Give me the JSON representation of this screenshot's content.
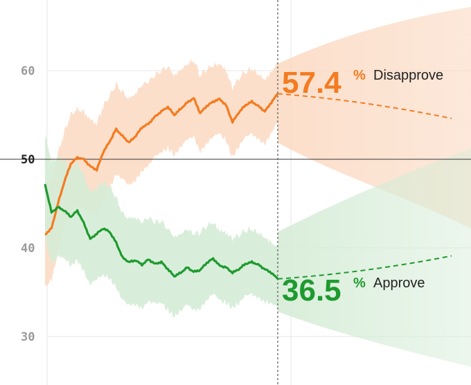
{
  "chart_data": {
    "type": "line",
    "y_ticks": [
      "60",
      "50",
      "40",
      "30"
    ],
    "ylim": [
      27,
      68
    ],
    "series": [
      {
        "name": "Disapprove",
        "current_value": "57.4",
        "percent_sign": "%",
        "color": "#f47b20",
        "band_color": "#fbd9c1",
        "values": [
          41.5,
          42.2,
          45.0,
          47.5,
          49.5,
          50.2,
          50.0,
          49.2,
          48.8,
          50.8,
          52.0,
          53.4,
          52.6,
          51.9,
          52.6,
          53.6,
          54.0,
          54.8,
          55.4,
          55.9,
          55.0,
          55.7,
          56.4,
          56.9,
          55.2,
          56.0,
          56.5,
          56.8,
          56.1,
          54.2,
          55.3,
          56.1,
          56.5,
          56.0,
          55.4,
          56.4,
          57.4
        ],
        "projection_end": 54.6
      },
      {
        "name": "Approve",
        "current_value": "36.5",
        "percent_sign": "%",
        "color": "#1e9a2f",
        "band_color": "#d5ecd6",
        "values": [
          47.2,
          44.0,
          44.6,
          44.2,
          43.5,
          44.2,
          42.8,
          41.0,
          41.6,
          42.2,
          41.8,
          40.6,
          38.9,
          38.4,
          38.6,
          38.1,
          38.7,
          38.2,
          38.4,
          37.6,
          36.8,
          37.2,
          37.8,
          37.3,
          37.5,
          38.3,
          38.8,
          38.0,
          37.8,
          37.2,
          37.6,
          38.2,
          38.4,
          38.1,
          37.6,
          37.2,
          36.5
        ],
        "projection_end": 39.1
      }
    ]
  }
}
